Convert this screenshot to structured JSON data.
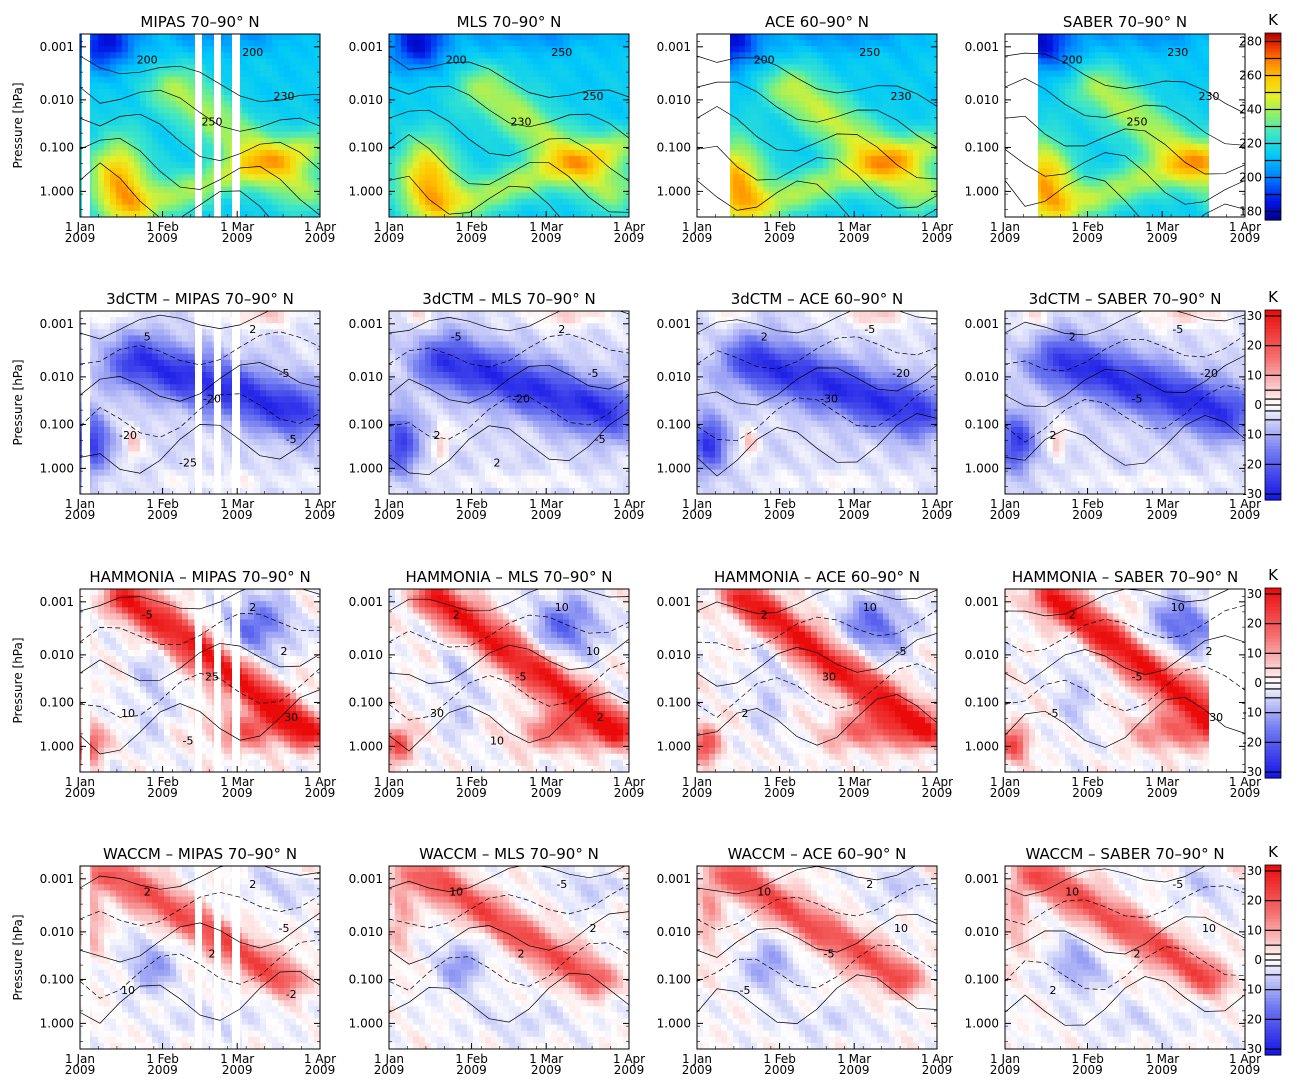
{
  "chart_data": {
    "type": "heatmap",
    "ylabel": "Pressure [hPa]",
    "y_ticks": [
      "0.001",
      "0.010",
      "0.100",
      "1.000"
    ],
    "x_ticks": [
      {
        "month": "1 Jan",
        "year": "2009"
      },
      {
        "month": "1 Feb",
        "year": "2009"
      },
      {
        "month": "1 Mar",
        "year": "2009"
      },
      {
        "month": "1 Apr",
        "year": "2009"
      }
    ],
    "yscale": "log",
    "ylim_hPa": [
      2.0,
      0.0007
    ],
    "xlim": [
      "2009-01-01",
      "2009-04-01"
    ],
    "rows": [
      {
        "colorbar": {
          "unit": "K",
          "ticks": [
            "280",
            "260",
            "240",
            "220",
            "200",
            "180"
          ],
          "range": [
            175,
            285
          ],
          "palette": "rainbow"
        },
        "panels": [
          {
            "title": "MIPAS   70–90° N",
            "labels": [
              "200",
              "200",
              "230",
              "250"
            ],
            "gaps": true
          },
          {
            "title": "MLS   70–90° N",
            "labels": [
              "200",
              "250",
              "250",
              "230"
            ]
          },
          {
            "title": "ACE   60–90° N",
            "labels": [
              "200",
              "250",
              "230"
            ]
          },
          {
            "title": "SABER   70–90° N",
            "labels": [
              "200",
              "230",
              "230",
              "250"
            ]
          }
        ]
      },
      {
        "colorbar": {
          "unit": "K",
          "ticks": [
            "30",
            "20",
            "10",
            "0",
            "-10",
            "-20",
            "-30"
          ],
          "range": [
            -32,
            32
          ],
          "palette": "bwr"
        },
        "panels": [
          {
            "title": "3dCTM – MIPAS   70–90° N",
            "labels": [
              "5",
              "2",
              "-5",
              "-20",
              "-20",
              "-5",
              "-25"
            ],
            "gaps": true
          },
          {
            "title": "3dCTM – MLS   70–90° N",
            "labels": [
              "-5",
              "2",
              "-5",
              "-20",
              "2",
              "-5",
              "2"
            ]
          },
          {
            "title": "3dCTM – ACE   60–90° N",
            "labels": [
              "2",
              "-5",
              "-20",
              "-30"
            ]
          },
          {
            "title": "3dCTM – SABER   70–90° N",
            "labels": [
              "2",
              "-5",
              "-20",
              "-5",
              "2"
            ]
          }
        ]
      },
      {
        "colorbar": {
          "unit": "K",
          "ticks": [
            "30",
            "20",
            "10",
            "0",
            "-10",
            "-20",
            "-30"
          ],
          "range": [
            -32,
            32
          ],
          "palette": "bwr"
        },
        "panels": [
          {
            "title": "HAMMONIA – MIPAS   70–90° N",
            "labels": [
              "-5",
              "2",
              "2",
              "25",
              "10",
              "30",
              "-5"
            ],
            "gaps": true
          },
          {
            "title": "HAMMONIA – MLS   70–90° N",
            "labels": [
              "2",
              "10",
              "10",
              "-5",
              "30",
              "2",
              "10"
            ]
          },
          {
            "title": "HAMMONIA – ACE   60–90° N",
            "labels": [
              "2",
              "10",
              "-5",
              "30",
              "2"
            ]
          },
          {
            "title": "HAMMONIA – SABER   70–90° N",
            "labels": [
              "2",
              "10",
              "2",
              "-5",
              "-5",
              "30"
            ]
          }
        ]
      },
      {
        "colorbar": {
          "unit": "K",
          "ticks": [
            "30",
            "20",
            "10",
            "0",
            "-10",
            "-20",
            "-30"
          ],
          "range": [
            -32,
            32
          ],
          "palette": "bwr"
        },
        "panels": [
          {
            "title": "WACCM – MIPAS   70–90° N",
            "labels": [
              "2",
              "2",
              "-5",
              "2",
              "10",
              "-2"
            ],
            "gaps": true
          },
          {
            "title": "WACCM – MLS   70–90° N",
            "labels": [
              "10",
              "-5",
              "2",
              "2"
            ]
          },
          {
            "title": "WACCM – ACE   60–90° N",
            "labels": [
              "10",
              "2",
              "10",
              "-5",
              "-5"
            ]
          },
          {
            "title": "WACCM – SABER   70–90° N",
            "labels": [
              "10",
              "-5",
              "10",
              "2",
              "2"
            ]
          }
        ]
      }
    ]
  }
}
